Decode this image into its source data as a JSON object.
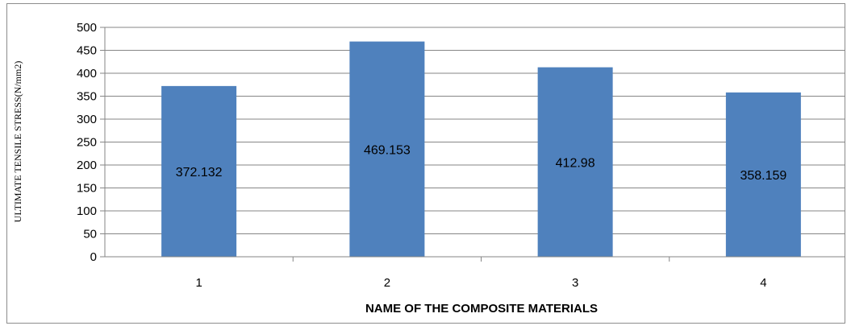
{
  "chart_data": {
    "type": "bar",
    "categories": [
      "1",
      "2",
      "3",
      "4"
    ],
    "values": [
      372.132,
      469.153,
      412.98,
      358.159
    ],
    "data_labels": [
      "372.132",
      "469.153",
      "412.98",
      "358.159"
    ],
    "title": "",
    "xlabel": "NAME OF THE COMPOSITE MATERIALS",
    "ylabel": "ULTIMATE TENSILE STRESS(N/mm2)",
    "ylim": [
      0,
      500
    ],
    "yticks": [
      "0",
      "50",
      "100",
      "150",
      "200",
      "250",
      "300",
      "350",
      "400",
      "450",
      "500"
    ],
    "grid": true,
    "legend": "none",
    "bar_color": "#4f81bd",
    "grid_color": "#868686"
  }
}
